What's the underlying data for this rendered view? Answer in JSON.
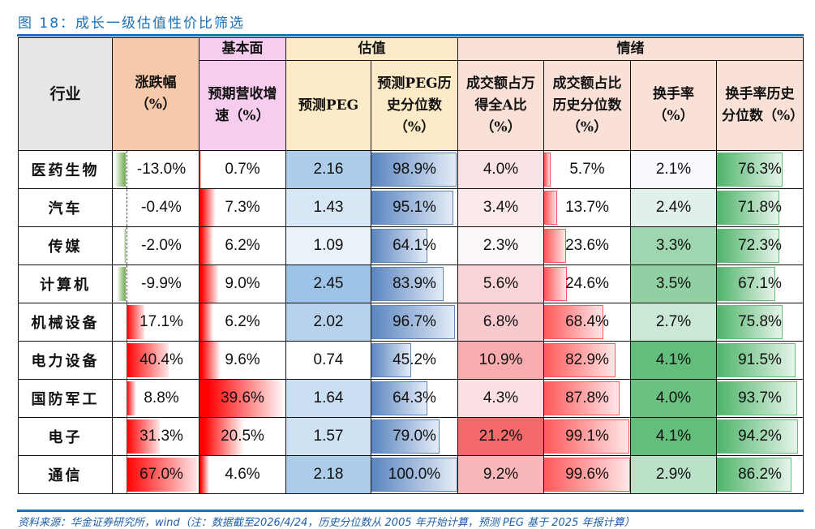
{
  "title": "图 18：成长一级估值性价比筛选",
  "headers": {
    "groups": {
      "fundamental": "基本面",
      "valuation": "估值",
      "sentiment": "情绪"
    },
    "industry": "行业",
    "change": "涨跌幅（%）",
    "revenue_growth": "预期营收增速（%）",
    "peg": "预测PEG",
    "peg_pct": "预测PEG历史分位数（%）",
    "turnover_share": "成交额占万得全A比（%）",
    "turnover_share_pct": "成交额占比历史分位数（%）",
    "turnover_rate": "换手率（%）",
    "turnover_rate_pct": "换手率历史分位数（%）"
  },
  "colors": {
    "title": "#1a6fb5",
    "rule": "#1f6fb3",
    "neg_bar": "#6aaa4a",
    "pos_bar": "#ff0000",
    "peg_pct_bar": "#5b86c0",
    "turnover_share_pct_bar": "#ff5a5a",
    "turnover_rate_pct_bar": "#4fb46a"
  },
  "rows": [
    {
      "industry": "医药生物",
      "change": "-13.0%",
      "revenue_growth": "0.7%",
      "peg": "2.16",
      "peg_pct": "98.9%",
      "turnover_share": "4.0%",
      "turnover_share_pct": "5.7%",
      "turnover_rate": "2.1%",
      "turnover_rate_pct": "76.3%"
    },
    {
      "industry": "汽车",
      "change": "-0.4%",
      "revenue_growth": "7.3%",
      "peg": "1.43",
      "peg_pct": "95.1%",
      "turnover_share": "3.4%",
      "turnover_share_pct": "13.7%",
      "turnover_rate": "2.4%",
      "turnover_rate_pct": "71.8%"
    },
    {
      "industry": "传媒",
      "change": "-2.0%",
      "revenue_growth": "6.2%",
      "peg": "1.09",
      "peg_pct": "64.1%",
      "turnover_share": "2.3%",
      "turnover_share_pct": "23.6%",
      "turnover_rate": "3.3%",
      "turnover_rate_pct": "72.3%"
    },
    {
      "industry": "计算机",
      "change": "-9.9%",
      "revenue_growth": "9.0%",
      "peg": "2.45",
      "peg_pct": "83.9%",
      "turnover_share": "5.6%",
      "turnover_share_pct": "24.6%",
      "turnover_rate": "3.5%",
      "turnover_rate_pct": "67.1%"
    },
    {
      "industry": "机械设备",
      "change": "17.1%",
      "revenue_growth": "6.2%",
      "peg": "2.02",
      "peg_pct": "96.7%",
      "turnover_share": "6.8%",
      "turnover_share_pct": "68.4%",
      "turnover_rate": "2.7%",
      "turnover_rate_pct": "75.8%"
    },
    {
      "industry": "电力设备",
      "change": "40.4%",
      "revenue_growth": "9.6%",
      "peg": "0.74",
      "peg_pct": "45.2%",
      "turnover_share": "10.9%",
      "turnover_share_pct": "82.9%",
      "turnover_rate": "4.1%",
      "turnover_rate_pct": "91.5%"
    },
    {
      "industry": "国防军工",
      "change": "8.8%",
      "revenue_growth": "39.6%",
      "peg": "1.64",
      "peg_pct": "64.3%",
      "turnover_share": "4.3%",
      "turnover_share_pct": "87.8%",
      "turnover_rate": "4.0%",
      "turnover_rate_pct": "93.7%"
    },
    {
      "industry": "电子",
      "change": "31.3%",
      "revenue_growth": "20.5%",
      "peg": "1.57",
      "peg_pct": "79.0%",
      "turnover_share": "21.2%",
      "turnover_share_pct": "99.1%",
      "turnover_rate": "4.1%",
      "turnover_rate_pct": "94.2%"
    },
    {
      "industry": "通信",
      "change": "67.0%",
      "revenue_growth": "4.6%",
      "peg": "2.18",
      "peg_pct": "100.0%",
      "turnover_share": "9.2%",
      "turnover_share_pct": "99.6%",
      "turnover_rate": "2.9%",
      "turnover_rate_pct": "86.2%"
    }
  ],
  "source": "资料来源：华金证券研究所，wind（注：数据截至2026/4/24，历史分位数从 2005 年开始计算，预测 PEG 基于 2025 年报计算）"
}
